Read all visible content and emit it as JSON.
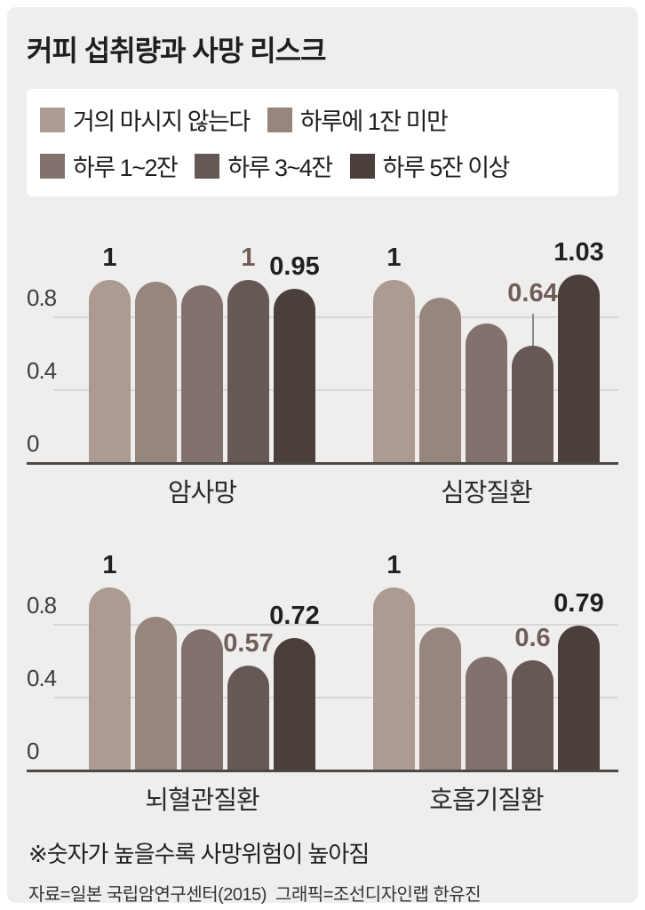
{
  "title": "커피 섭취량과 사망 리스크",
  "note": "※숫자가 높을수록 사망위험이 높아짐",
  "source": "자료=일본 국립암연구센터(2015)  그래픽=조선디자인랩 한유진",
  "colors": {
    "page": "#ffffff",
    "card_background": "#efeeed",
    "legend_box": "#ffffff",
    "grid": "#d9d7d5",
    "axis": "#4b4846",
    "label_dark": "#1f1f1f",
    "label_brown": "#6f5e58"
  },
  "chart_data": {
    "type": "bar",
    "title": "커피 섭취량과 사망 리스크",
    "categories": [
      "거의 마시지 않는다",
      "하루에 1잔 미만",
      "하루 1~2잔",
      "하루 3~4잔",
      "하루 5잔 이상"
    ],
    "colors": [
      "#ab9b92",
      "#97867e",
      "#81726d",
      "#665854",
      "#4b3f3c"
    ],
    "yticks": [
      0,
      0.4,
      0.8
    ],
    "ylim": [
      0,
      1.08
    ],
    "grid": true,
    "legend_position": "top",
    "legend_rows": [
      [
        0,
        1
      ],
      [
        2,
        3,
        4
      ]
    ],
    "panels": [
      {
        "name": "암사망",
        "values": [
          1,
          0.99,
          0.97,
          1,
          0.95
        ],
        "labels": [
          {
            "index": 0,
            "text": "1",
            "style": "dark"
          },
          {
            "index": 3,
            "text": "1",
            "style": "brown"
          },
          {
            "index": 4,
            "text": "0.95",
            "style": "dark"
          }
        ]
      },
      {
        "name": "심장질환",
        "values": [
          1,
          0.9,
          0.76,
          0.64,
          1.03
        ],
        "labels": [
          {
            "index": 0,
            "text": "1",
            "style": "dark"
          },
          {
            "index": 3,
            "text": "0.64",
            "style": "brown",
            "leader": true
          },
          {
            "index": 4,
            "text": "1.03",
            "style": "dark"
          }
        ]
      },
      {
        "name": "뇌혈관질환",
        "values": [
          1,
          0.84,
          0.77,
          0.57,
          0.72
        ],
        "labels": [
          {
            "index": 0,
            "text": "1",
            "style": "dark"
          },
          {
            "index": 3,
            "text": "0.57",
            "style": "brown"
          },
          {
            "index": 4,
            "text": "0.72",
            "style": "dark"
          }
        ]
      },
      {
        "name": "호흡기질환",
        "values": [
          1,
          0.78,
          0.62,
          0.6,
          0.79
        ],
        "labels": [
          {
            "index": 0,
            "text": "1",
            "style": "dark"
          },
          {
            "index": 3,
            "text": "0.6",
            "style": "brown"
          },
          {
            "index": 4,
            "text": "0.79",
            "style": "dark"
          }
        ]
      }
    ]
  }
}
